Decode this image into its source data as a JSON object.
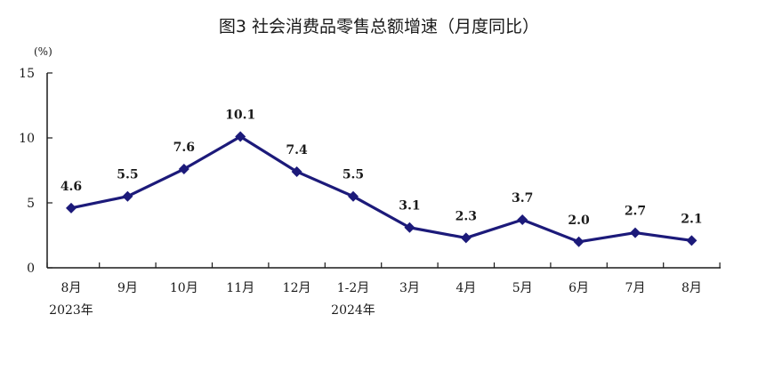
{
  "chart_data": {
    "type": "line",
    "title": "图3   社会消费品零售总额增速（月度同比）",
    "ylabel": "(%)",
    "xlabel": "",
    "ylim": [
      0,
      15
    ],
    "yticks": [
      "0",
      "5",
      "10",
      "15"
    ],
    "categories": [
      "8月",
      "9月",
      "10月",
      "11月",
      "12月",
      "1-2月",
      "3月",
      "4月",
      "5月",
      "6月",
      "7月",
      "8月"
    ],
    "year_labels": [
      {
        "index": 0,
        "text": "2023年"
      },
      {
        "index": 5,
        "text": "2024年"
      }
    ],
    "series": [
      {
        "values": [
          4.6,
          5.5,
          7.6,
          10.1,
          7.4,
          5.5,
          3.1,
          2.3,
          3.7,
          2.0,
          2.7,
          2.1
        ],
        "labels": [
          "4.6",
          "5.5",
          "7.6",
          "10.1",
          "7.4",
          "5.5",
          "3.1",
          "2.3",
          "3.7",
          "2.0",
          "2.7",
          "2.1"
        ]
      }
    ],
    "line_color": "#1c1a7a",
    "axis_color": "#1a1a1a",
    "marker": "diamond",
    "grid": false,
    "legend": "none"
  }
}
